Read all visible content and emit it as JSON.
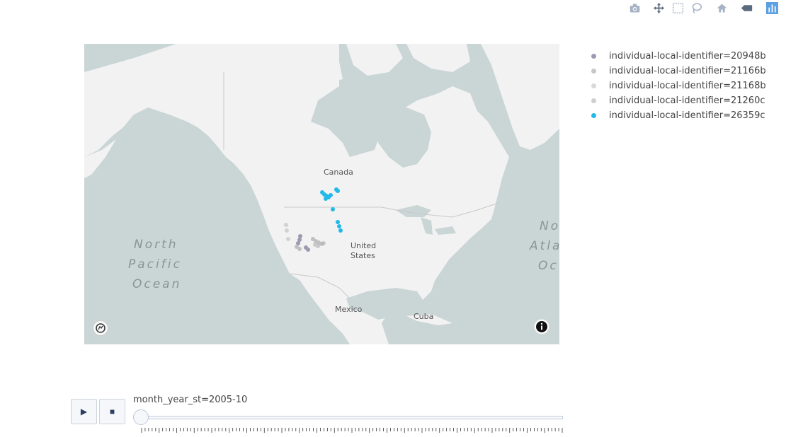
{
  "modebar": {
    "buttons": [
      {
        "name": "camera-icon",
        "title": "Download plot as a png"
      },
      {
        "name": "pan-icon",
        "title": "Pan"
      },
      {
        "name": "box-select-icon",
        "title": "Box Select"
      },
      {
        "name": "lasso-select-icon",
        "title": "Lasso Select"
      },
      {
        "name": "home-icon",
        "title": "Reset view"
      },
      {
        "name": "hover-compare-icon",
        "title": "Toggle show closest data on hover"
      },
      {
        "name": "plotly-logo-icon",
        "title": "Produced with Plotly"
      }
    ]
  },
  "map": {
    "labels": {
      "canada": "Canada",
      "united_states_1": "United",
      "united_states_2": "States",
      "mexico": "Mexico",
      "cuba": "Cuba",
      "north_pacific_1": "North",
      "north_pacific_2": "Pacific",
      "north_pacific_3": "Ocean",
      "north_atlantic_1": "No",
      "north_atlantic_2": "Atla",
      "north_atlantic_3": "Oc"
    },
    "colors": {
      "water": "#cad5d6",
      "land": "#f2f2f2",
      "border": "#c9c9c9"
    },
    "attribution_icon": "info-icon",
    "logo_icon": "mapbox-logo-icon"
  },
  "legend": {
    "items": [
      {
        "label": "individual-local-identifier=20948b",
        "color": "#9a9ab0",
        "opacity": 1
      },
      {
        "label": "individual-local-identifier=21166b",
        "color": "#a0a0a0",
        "opacity": 0.6
      },
      {
        "label": "individual-local-identifier=21168b",
        "color": "#b4b4b4",
        "opacity": 0.5
      },
      {
        "label": "individual-local-identifier=21260c",
        "color": "#a8a8a8",
        "opacity": 0.55
      },
      {
        "label": "individual-local-identifier=26359c",
        "color": "#22b8e8",
        "opacity": 1
      }
    ]
  },
  "animation": {
    "play_icon": "play-icon",
    "stop_icon": "stop-icon",
    "play_label": "▶",
    "stop_label": "■",
    "current_label": "month_year_st=2005-10",
    "slider_fraction": 0
  }
}
